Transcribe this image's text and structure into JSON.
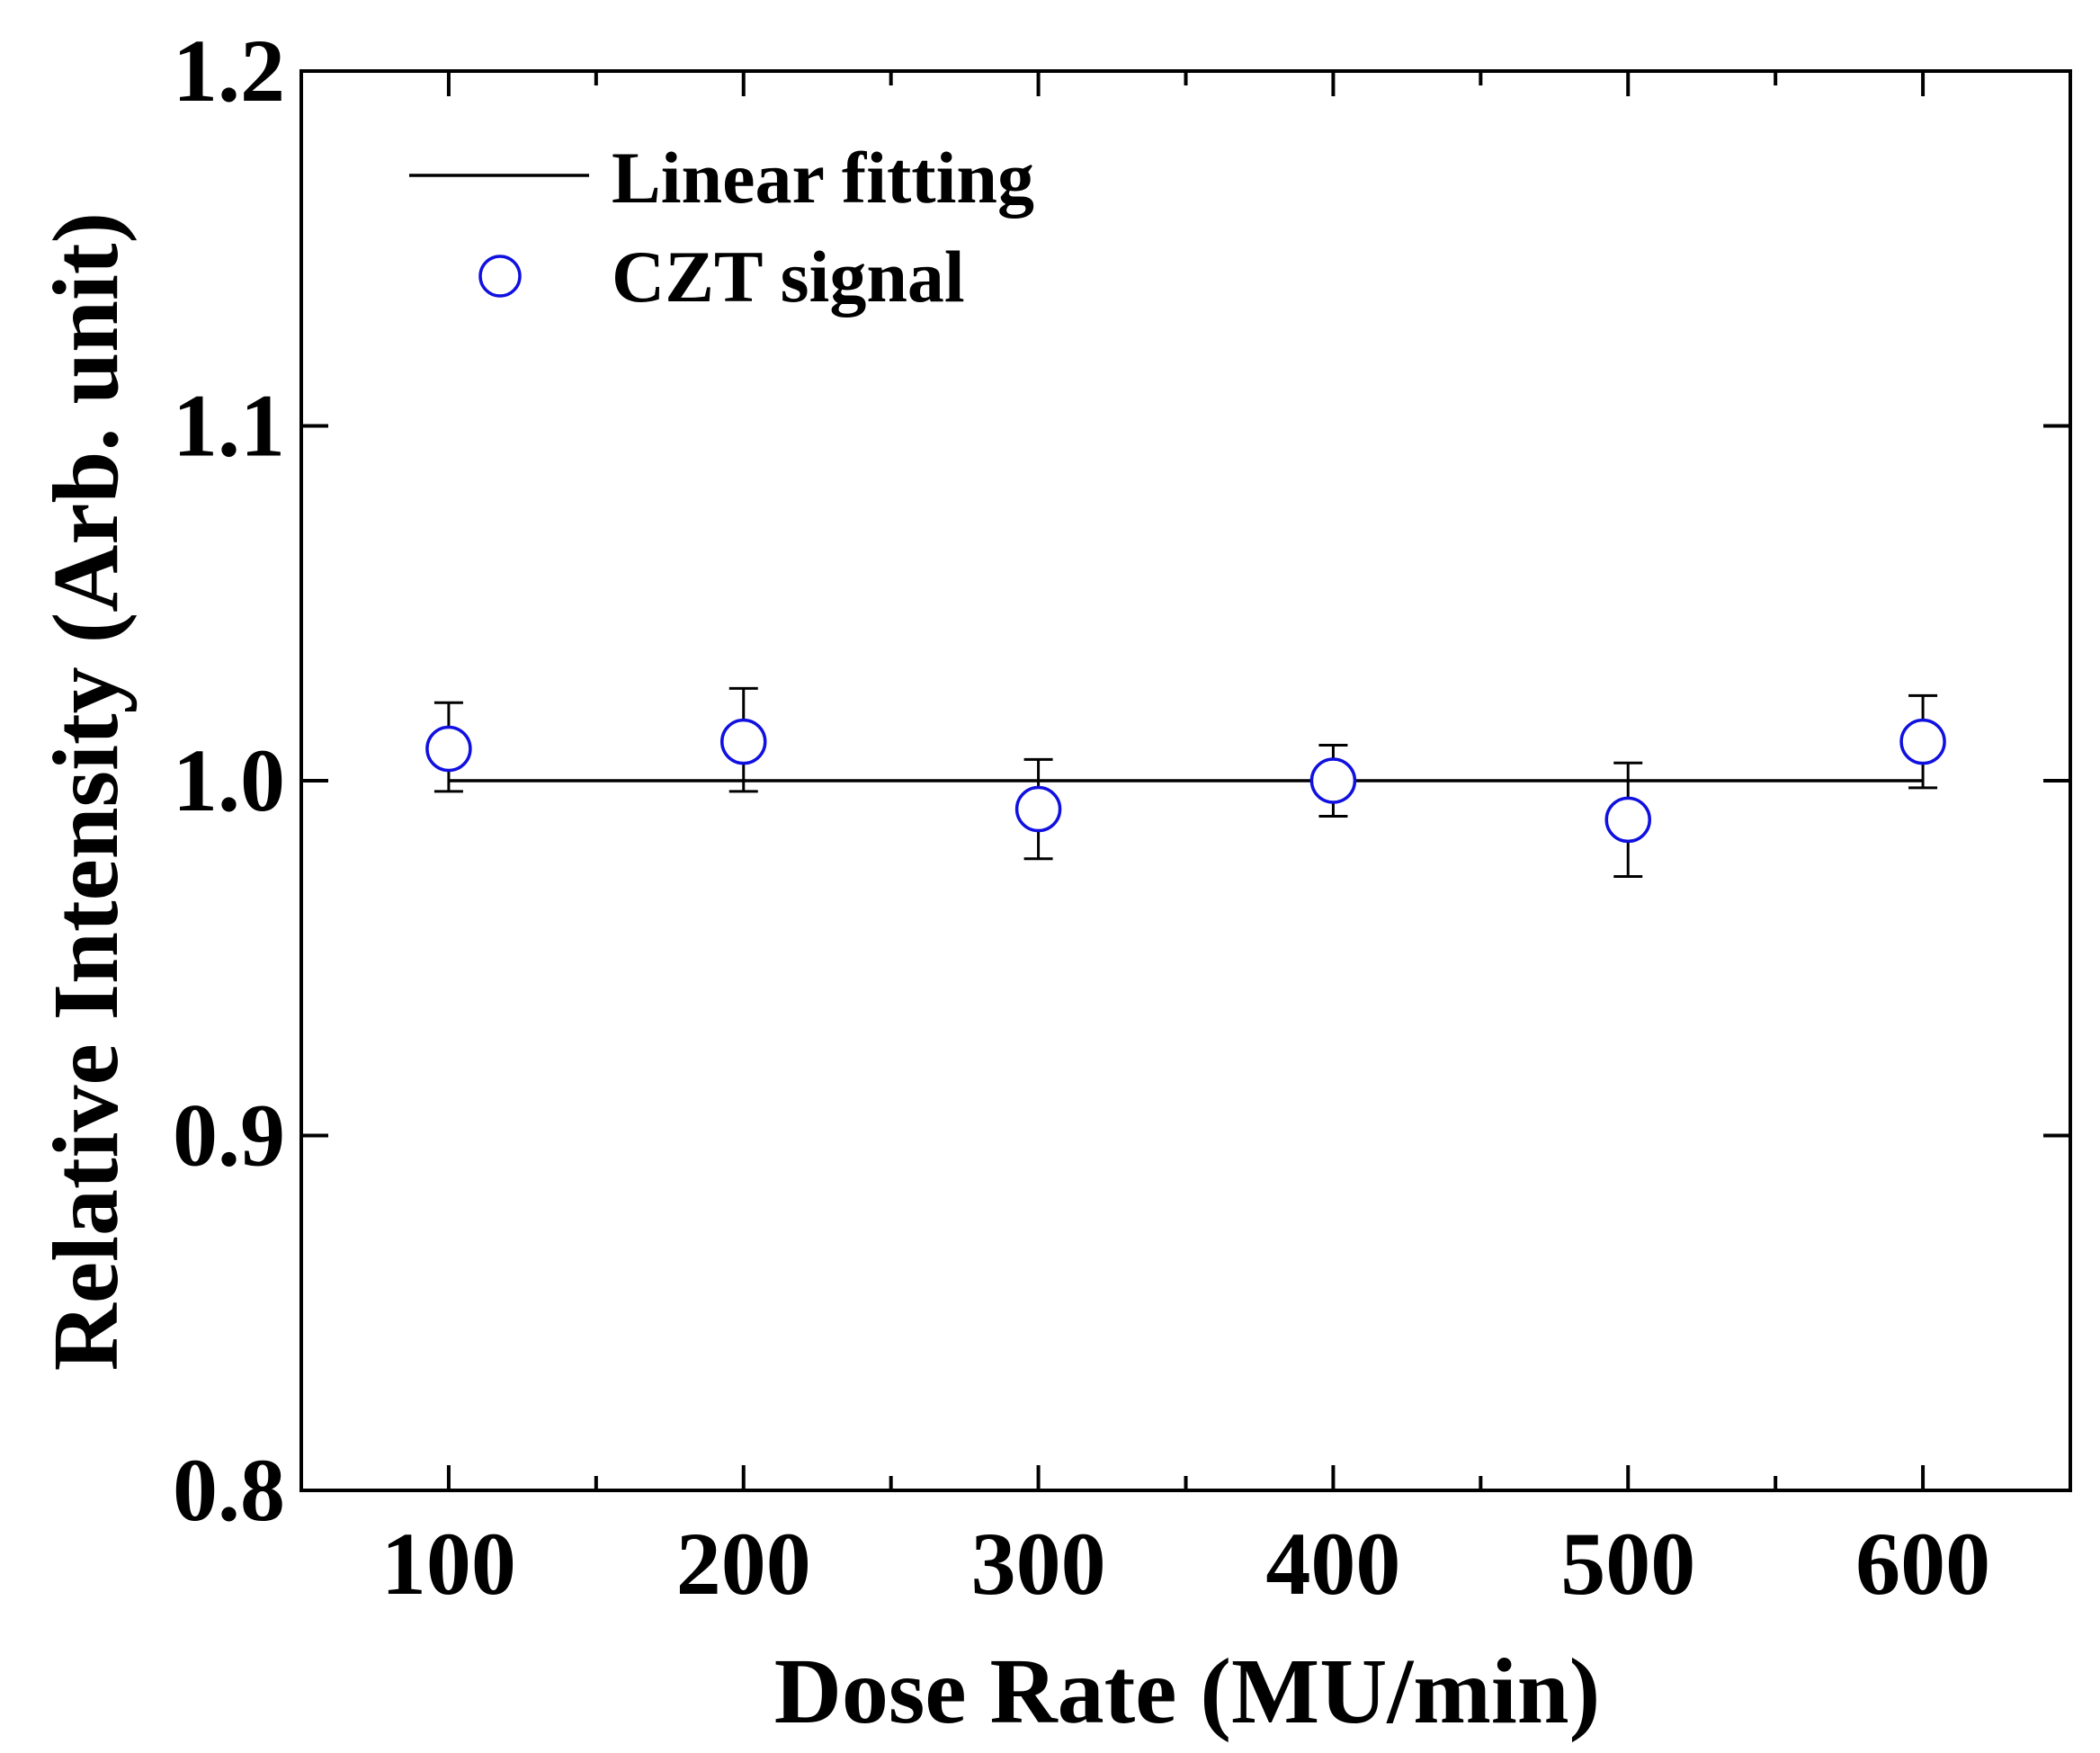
{
  "chart_data": {
    "type": "scatter",
    "title": "",
    "xlabel": "Dose Rate (MU/min)",
    "ylabel": "Relative Intensity (Arb. unit)",
    "xlim": [
      50,
      650
    ],
    "ylim": [
      0.8,
      1.2
    ],
    "x_ticks": [
      100,
      200,
      300,
      400,
      500,
      600
    ],
    "x_tick_labels": [
      "100",
      "200",
      "300",
      "400",
      "500",
      "600"
    ],
    "x_minor_ticks": [
      150,
      250,
      350,
      450,
      550
    ],
    "y_ticks": [
      0.8,
      0.9,
      1.0,
      1.1,
      1.2
    ],
    "y_tick_labels": [
      "0.8",
      "0.9",
      "1.0",
      "1.1",
      "1.2"
    ],
    "grid": false,
    "legend_position": "top-left",
    "series": [
      {
        "name": "CZT signal",
        "kind": "scatter",
        "marker": "open-circle",
        "color": "#1010e0",
        "x": [
          100,
          200,
          300,
          400,
          500,
          600
        ],
        "y": [
          1.009,
          1.011,
          0.992,
          1.0,
          0.989,
          1.011
        ],
        "err_upper": [
          1.022,
          1.026,
          1.006,
          1.01,
          1.005,
          1.024
        ],
        "err_lower": [
          0.997,
          0.997,
          0.978,
          0.99,
          0.973,
          0.998
        ],
        "error_color": "#000000"
      },
      {
        "name": "Linear fitting",
        "kind": "line",
        "color": "#000000",
        "x": [
          100,
          600
        ],
        "y": [
          1.0,
          1.0
        ]
      }
    ],
    "legend": [
      "Linear fitting",
      "CZT signal"
    ]
  }
}
